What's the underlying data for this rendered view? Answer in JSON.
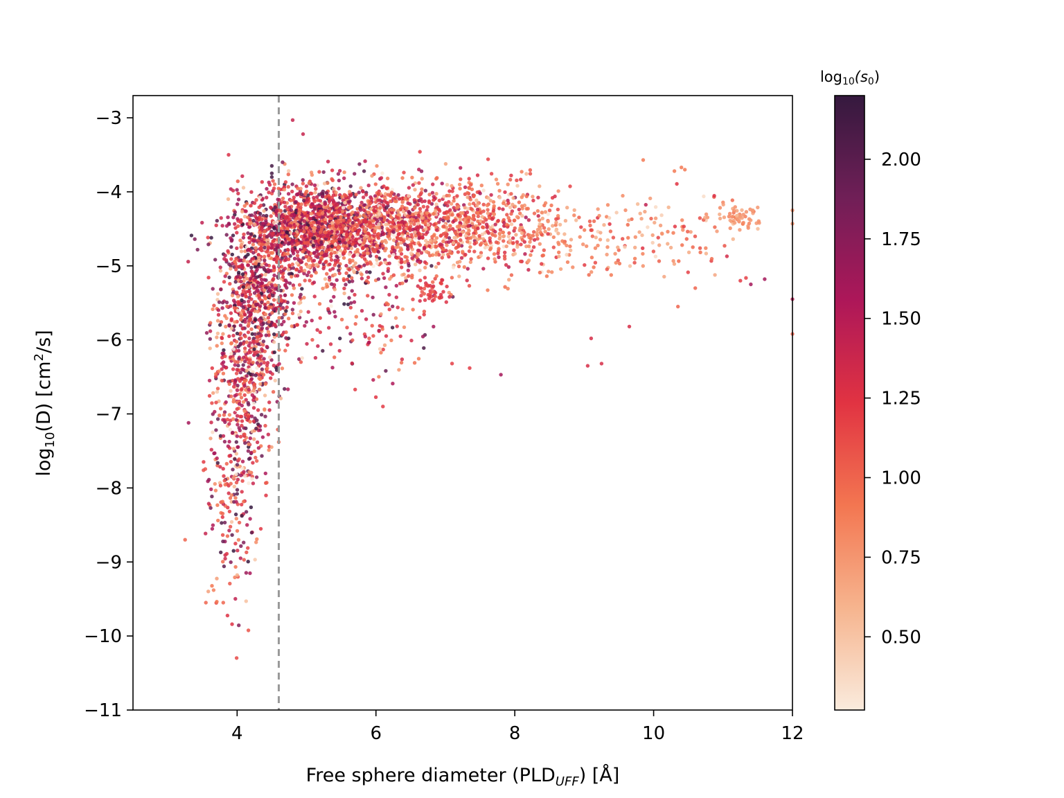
{
  "chart_data": {
    "type": "scatter",
    "xlabel": {
      "main": "Free sphere diameter (PLD",
      "sub": "UFF",
      "tail": ") [Å]"
    },
    "ylabel": {
      "main": "log",
      "sub": "10",
      "mid": "(D) [cm",
      "sup": "2",
      "tail": "/s]"
    },
    "xlim": [
      2.5,
      12
    ],
    "ylim": [
      -11,
      -2.7
    ],
    "xticks": [
      4,
      6,
      8,
      10,
      12
    ],
    "xtick_labels": [
      "4",
      "6",
      "8",
      "10",
      "12"
    ],
    "yticks": [
      -3,
      -4,
      -5,
      -6,
      -7,
      -8,
      -9,
      -10,
      -11
    ],
    "ytick_labels": [
      "−3",
      "−4",
      "−5",
      "−6",
      "−7",
      "−8",
      "−9",
      "−10",
      "−11"
    ],
    "vline": {
      "x": 4.6,
      "color": "#999999",
      "style": "dashed"
    },
    "colorbar": {
      "title": {
        "main": "log",
        "sub": "10",
        "tail": "(s",
        "sub2": "0",
        "end": ")"
      },
      "range": [
        0.27,
        2.2
      ],
      "ticks": [
        0.5,
        0.75,
        1.0,
        1.25,
        1.5,
        1.75,
        2.0
      ],
      "tick_labels": [
        "0.50",
        "0.75",
        "1.00",
        "1.25",
        "1.50",
        "1.75",
        "2.00"
      ],
      "colormap": "rocket_r",
      "stops": [
        "#faebdd",
        "#f6b48e",
        "#f37651",
        "#e13342",
        "#ad1759",
        "#701f57",
        "#35193e"
      ]
    },
    "point_groups": [
      {
        "x_center": 4.3,
        "x_spread": 0.28,
        "y_center": -5.3,
        "y_spread": 0.6,
        "c_center": 1.35,
        "c_spread": 0.45,
        "count": 650
      },
      {
        "x_center": 4.1,
        "x_spread": 0.22,
        "y_center": -6.6,
        "y_spread": 0.8,
        "c_center": 1.3,
        "c_spread": 0.45,
        "count": 450
      },
      {
        "x_center": 3.9,
        "x_spread": 0.18,
        "y_center": -8.2,
        "y_spread": 0.7,
        "c_center": 1.25,
        "c_spread": 0.5,
        "count": 140
      },
      {
        "x_center": 5.1,
        "x_spread": 0.5,
        "y_center": -4.5,
        "y_spread": 0.3,
        "c_center": 1.3,
        "c_spread": 0.4,
        "count": 1250
      },
      {
        "x_center": 6.2,
        "x_spread": 0.6,
        "y_center": -4.45,
        "y_spread": 0.3,
        "c_center": 1.15,
        "c_spread": 0.35,
        "count": 850
      },
      {
        "x_center": 7.5,
        "x_spread": 0.6,
        "y_center": -4.45,
        "y_spread": 0.3,
        "c_center": 0.95,
        "c_spread": 0.3,
        "count": 500
      },
      {
        "x_center": 9.4,
        "x_spread": 1.0,
        "y_center": -4.6,
        "y_spread": 0.3,
        "c_center": 0.85,
        "c_spread": 0.25,
        "count": 200
      },
      {
        "x_center": 11.25,
        "x_spread": 0.15,
        "y_center": -4.35,
        "y_spread": 0.08,
        "c_center": 0.75,
        "c_spread": 0.08,
        "count": 55
      },
      {
        "x_center": 6.8,
        "x_spread": 0.12,
        "y_center": -5.35,
        "y_spread": 0.12,
        "c_center": 1.2,
        "c_spread": 0.1,
        "count": 45
      },
      {
        "x_center": 5.6,
        "x_spread": 0.7,
        "y_center": -5.6,
        "y_spread": 0.45,
        "c_center": 1.3,
        "c_spread": 0.4,
        "count": 180
      }
    ],
    "notable_points": [
      {
        "x": 3.3,
        "y": -7.12,
        "c": 1.6
      },
      {
        "x": 3.25,
        "y": -8.7,
        "c": 1.0
      },
      {
        "x": 3.55,
        "y": -9.55,
        "c": 1.0
      },
      {
        "x": 3.8,
        "y": -9.55,
        "c": 1.0
      },
      {
        "x": 4.5,
        "y": -3.65,
        "c": 2.1
      },
      {
        "x": 4.5,
        "y": -3.75,
        "c": 2.1
      },
      {
        "x": 4.5,
        "y": -3.8,
        "c": 2.1
      },
      {
        "x": 4.8,
        "y": -3.03,
        "c": 1.4
      },
      {
        "x": 4.95,
        "y": -3.22,
        "c": 1.4
      },
      {
        "x": 4.0,
        "y": -8.08,
        "c": 2.0
      },
      {
        "x": 4.05,
        "y": -8.95,
        "c": 1.5
      },
      {
        "x": 4.6,
        "y": -7.38,
        "c": 1.0
      },
      {
        "x": 5.7,
        "y": -6.67,
        "c": 1.2
      },
      {
        "x": 6.1,
        "y": -6.9,
        "c": 1.2
      },
      {
        "x": 7.8,
        "y": -6.47,
        "c": 1.6
      },
      {
        "x": 7.35,
        "y": -6.38,
        "c": 1.2
      },
      {
        "x": 6.8,
        "y": -5.0,
        "c": 2.1
      },
      {
        "x": 9.05,
        "y": -6.35,
        "c": 1.3
      },
      {
        "x": 9.25,
        "y": -6.32,
        "c": 1.3
      },
      {
        "x": 9.1,
        "y": -5.98,
        "c": 1.3
      },
      {
        "x": 9.65,
        "y": -5.82,
        "c": 1.3
      },
      {
        "x": 10.35,
        "y": -5.55,
        "c": 1.0
      },
      {
        "x": 10.4,
        "y": -3.67,
        "c": 0.9
      },
      {
        "x": 10.45,
        "y": -3.7,
        "c": 0.9
      },
      {
        "x": 10.3,
        "y": -3.72,
        "c": 0.9
      },
      {
        "x": 9.85,
        "y": -3.57,
        "c": 0.9
      },
      {
        "x": 11.4,
        "y": -5.25,
        "c": 1.6
      },
      {
        "x": 11.6,
        "y": -5.18,
        "c": 1.6
      },
      {
        "x": 12.0,
        "y": -5.45,
        "c": 1.5
      },
      {
        "x": 12.0,
        "y": -5.92,
        "c": 1.0
      },
      {
        "x": 12.0,
        "y": -4.43,
        "c": 0.8
      },
      {
        "x": 12.0,
        "y": -4.25,
        "c": 0.8
      },
      {
        "x": 11.25,
        "y": -5.2,
        "c": 1.2
      },
      {
        "x": 10.6,
        "y": -5.3,
        "c": 1.0
      }
    ]
  }
}
